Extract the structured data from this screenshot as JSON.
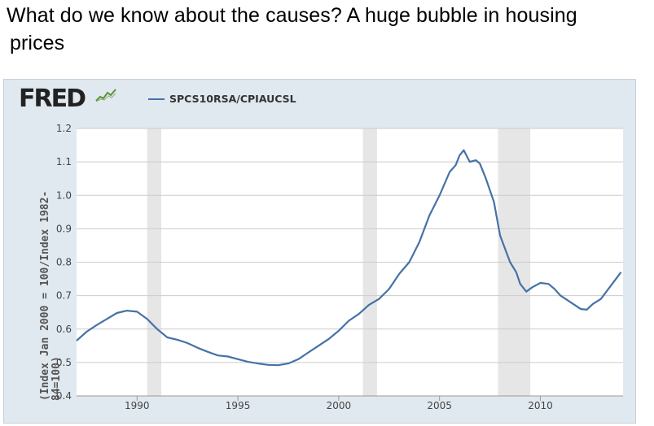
{
  "slide": {
    "title_line1": "What do we know about the causes? A huge bubble in housing",
    "title_line2": "prices"
  },
  "fred": {
    "logo_text": "FRED",
    "legend_label": "SPCS10RSA/CPIAUCSL",
    "ylabel": "(Index Jan 2000 = 100/Index 1982-84=100)"
  },
  "colors": {
    "line": "#4572a7",
    "panel_bg": "#e1e9f0",
    "recession": "#e6e6e6",
    "grid": "#cccccc"
  },
  "chart_data": {
    "type": "line",
    "title": "",
    "xlabel": "",
    "ylabel": "(Index Jan 2000 = 100/Index 1982-84=100)",
    "xlim": [
      1987.0,
      2014.1
    ],
    "ylim": [
      0.4,
      1.2
    ],
    "yticks": [
      0.4,
      0.5,
      0.6,
      0.7,
      0.8,
      0.9,
      1.0,
      1.1,
      1.2
    ],
    "ytick_labels": [
      "0.4",
      "0.5",
      "0.6",
      "0.7",
      "0.8",
      "0.9",
      "1.0",
      "1.1",
      "1.2"
    ],
    "xticks": [
      1990,
      1995,
      2000,
      2005,
      2010
    ],
    "xtick_labels": [
      "1990",
      "1995",
      "2000",
      "2005",
      "2010"
    ],
    "recessions": [
      [
        1990.5,
        1991.2
      ],
      [
        2001.2,
        2001.9
      ],
      [
        2007.9,
        2009.5
      ]
    ],
    "series": [
      {
        "name": "SPCS10RSA/CPIAUCSL",
        "x": [
          1987.0,
          1987.5,
          1988.0,
          1988.5,
          1989.0,
          1989.5,
          1990.0,
          1990.5,
          1991.0,
          1991.5,
          1992.0,
          1992.5,
          1993.0,
          1993.5,
          1994.0,
          1994.5,
          1995.0,
          1995.5,
          1996.0,
          1996.5,
          1997.0,
          1997.5,
          1998.0,
          1998.5,
          1999.0,
          1999.5,
          2000.0,
          2000.5,
          2001.0,
          2001.5,
          2002.0,
          2002.5,
          2003.0,
          2003.5,
          2004.0,
          2004.5,
          2005.0,
          2005.5,
          2005.8,
          2006.0,
          2006.2,
          2006.5,
          2006.8,
          2007.0,
          2007.3,
          2007.7,
          2008.0,
          2008.5,
          2008.8,
          2009.0,
          2009.3,
          2009.6,
          2010.0,
          2010.4,
          2010.7,
          2011.0,
          2011.5,
          2012.0,
          2012.3,
          2012.6,
          2013.0,
          2013.5,
          2014.0
        ],
        "values": [
          0.565,
          0.592,
          0.612,
          0.63,
          0.648,
          0.655,
          0.652,
          0.63,
          0.6,
          0.575,
          0.568,
          0.558,
          0.544,
          0.532,
          0.521,
          0.518,
          0.51,
          0.502,
          0.497,
          0.493,
          0.492,
          0.497,
          0.51,
          0.53,
          0.55,
          0.57,
          0.595,
          0.625,
          0.645,
          0.672,
          0.69,
          0.72,
          0.765,
          0.8,
          0.86,
          0.94,
          1.0,
          1.07,
          1.09,
          1.12,
          1.135,
          1.1,
          1.105,
          1.095,
          1.05,
          0.98,
          0.88,
          0.8,
          0.77,
          0.735,
          0.712,
          0.725,
          0.738,
          0.735,
          0.72,
          0.7,
          0.68,
          0.66,
          0.658,
          0.675,
          0.69,
          0.73,
          0.77
        ]
      }
    ]
  }
}
